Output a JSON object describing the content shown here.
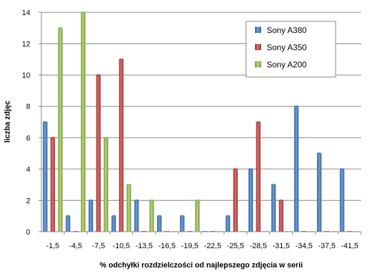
{
  "chart_data": {
    "type": "bar",
    "categories": [
      "-1,5",
      "-4,5",
      "-7,5",
      "-10,5",
      "-13,5",
      "-16,5",
      "-19,5",
      "-22,5",
      "-25,5",
      "-28,5",
      "-31,5",
      "-34,5",
      "-37,5",
      "-41,5"
    ],
    "series": [
      {
        "name": "Sony A380",
        "color": "#4a7ebb",
        "values": [
          7,
          1,
          2,
          1,
          2,
          1,
          1,
          0,
          1,
          4,
          3,
          8,
          5,
          4
        ]
      },
      {
        "name": "Sony A350",
        "color": "#be4b48",
        "values": [
          6,
          0,
          10,
          11,
          0,
          0,
          0,
          0,
          4,
          7,
          2,
          0,
          0,
          0
        ]
      },
      {
        "name": "Sony A200",
        "color": "#98b954",
        "values": [
          13,
          14,
          6,
          3,
          2,
          0,
          2,
          0,
          0,
          0,
          0,
          0,
          0,
          0
        ]
      }
    ],
    "yticks": [
      "0",
      "2",
      "4",
      "6",
      "8",
      "10",
      "12",
      "14"
    ],
    "ylim": [
      0,
      14
    ],
    "xlabel": "% odchyłki  rozdzielczości  od najlepszego  zdjęcia  w serii",
    "ylabel": "liczba zdjęc",
    "title": "",
    "grid": "horizontal",
    "legend_position": "top-right"
  }
}
